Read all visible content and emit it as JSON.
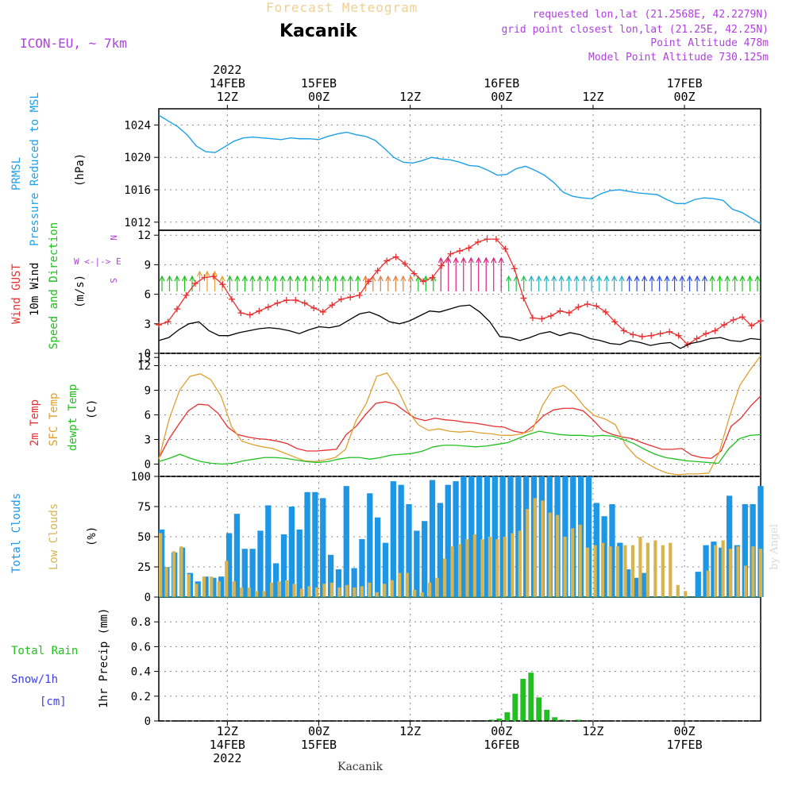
{
  "header": {
    "forecast_title": "Forecast Meteogram",
    "station": "Kacanik",
    "model": "ICON-EU, ~ 7km",
    "meta_lines": [
      "requested lon,lat (21.2568E, 42.2279N)",
      "grid point closest lon,lat (21.25E, 42.25N)",
      "Point Altitude 478m",
      "Model Point Altitude 730.125m"
    ],
    "credit": "by Angel",
    "footer_name": "Kacanik"
  },
  "time_axis": {
    "top_labels": [
      {
        "h": 12,
        "lines": [
          "2022",
          "14FEB",
          "12Z"
        ]
      },
      {
        "h": 24,
        "lines": [
          "15FEB",
          "00Z"
        ]
      },
      {
        "h": 36,
        "lines": [
          "12Z"
        ]
      },
      {
        "h": 48,
        "lines": [
          "16FEB",
          "00Z"
        ]
      },
      {
        "h": 60,
        "lines": [
          "12Z"
        ]
      },
      {
        "h": 72,
        "lines": [
          "17FEB",
          "00Z"
        ]
      }
    ],
    "bottom_labels": [
      {
        "h": 12,
        "lines": [
          "12Z",
          "14FEB",
          "2022"
        ]
      },
      {
        "h": 24,
        "lines": [
          "00Z",
          "15FEB"
        ]
      },
      {
        "h": 36,
        "lines": [
          "12Z"
        ]
      },
      {
        "h": 48,
        "lines": [
          "00Z",
          "16FEB"
        ]
      },
      {
        "h": 60,
        "lines": [
          "12Z"
        ]
      },
      {
        "h": 72,
        "lines": [
          "00Z",
          "17FEB"
        ]
      }
    ]
  },
  "colors": {
    "pressure": "#1ea0e6",
    "gust": "#e83030",
    "wind": "#000000",
    "temp2m": "#e83030",
    "sfc": "#e0a030",
    "dewpt": "#20c020",
    "total_clouds": "#1e96e6",
    "low_clouds": "#d8b450",
    "rain": "#20c020",
    "snow": "#4040e0",
    "arrow": "#20c020",
    "purple": "#b040e0"
  },
  "chart_data": [
    {
      "type": "line",
      "title": "PRMSL Pressure Reduced to MSL",
      "ylabel": "(hPa)",
      "side_labels": [
        "PRMSL",
        "Pressure Reduced to MSL"
      ],
      "ylim": [
        1011,
        1026
      ],
      "yticks": [
        1012,
        1016,
        1020,
        1024
      ],
      "series": [
        {
          "name": "pressure",
          "values": [
            1025.2,
            1024.5,
            1023.8,
            1022.8,
            1021.4,
            1020.7,
            1020.6,
            1021.3,
            1022.0,
            1022.4,
            1022.5,
            1022.4,
            1022.3,
            1022.2,
            1022.4,
            1022.3,
            1022.3,
            1022.2,
            1022.6,
            1022.9,
            1023.1,
            1022.8,
            1022.6,
            1022.1,
            1021.1,
            1020.0,
            1019.4,
            1019.3,
            1019.6,
            1020.0,
            1019.8,
            1019.7,
            1019.4,
            1019.0,
            1018.9,
            1018.4,
            1017.8,
            1017.9,
            1018.6,
            1018.9,
            1018.4,
            1017.8,
            1016.9,
            1015.7,
            1015.2,
            1015.0,
            1014.9,
            1015.5,
            1015.9,
            1016.0,
            1015.8,
            1015.6,
            1015.5,
            1015.4,
            1014.8,
            1014.3,
            1014.3,
            1014.8,
            1015.0,
            1014.9,
            1014.7,
            1013.6,
            1013.2,
            1012.5,
            1011.8
          ]
        }
      ]
    },
    {
      "type": "line",
      "title": "Wind GUST, 10m Wind Speed and Direction",
      "ylabel": "(m/s)",
      "side_labels": [
        "Wind GUST",
        "10m Wind",
        "Speed and Direction"
      ],
      "compass": [
        "N",
        "W <-|-> E",
        "S"
      ],
      "ylim": [
        0,
        12.5
      ],
      "yticks": [
        0,
        3,
        6,
        9,
        12
      ],
      "series": [
        {
          "name": "gust",
          "values": [
            2.9,
            3.2,
            4.5,
            5.9,
            7.1,
            7.7,
            7.8,
            7.0,
            5.5,
            4.1,
            3.9,
            4.3,
            4.7,
            5.1,
            5.4,
            5.4,
            5.1,
            4.6,
            4.2,
            4.9,
            5.5,
            5.7,
            5.9,
            7.3,
            8.4,
            9.4,
            9.8,
            9.1,
            8.1,
            7.3,
            7.7,
            8.9,
            10.1,
            10.4,
            10.7,
            11.3,
            11.6,
            11.6,
            10.6,
            8.6,
            5.6,
            3.6,
            3.5,
            3.8,
            4.3,
            4.1,
            4.7,
            5.0,
            4.8,
            4.2,
            3.2,
            2.3,
            1.9,
            1.7,
            1.8,
            2.0,
            2.2,
            1.8,
            0.9,
            1.5,
            2.0,
            2.3,
            2.9,
            3.4,
            3.7,
            2.8,
            3.3
          ]
        },
        {
          "name": "wind",
          "values": [
            1.3,
            1.6,
            2.4,
            3.0,
            3.2,
            2.3,
            1.8,
            1.8,
            2.1,
            2.3,
            2.5,
            2.6,
            2.5,
            2.3,
            2.0,
            2.4,
            2.7,
            2.6,
            2.8,
            3.4,
            4.0,
            4.2,
            3.8,
            3.2,
            3.0,
            3.3,
            3.8,
            4.3,
            4.2,
            4.5,
            4.8,
            4.9,
            4.2,
            3.2,
            1.7,
            1.6,
            1.3,
            1.6,
            2.0,
            2.2,
            1.8,
            2.1,
            1.9,
            1.5,
            1.3,
            1.0,
            0.9,
            1.3,
            1.1,
            0.8,
            1.0,
            1.1,
            0.5,
            1.0,
            1.2,
            1.5,
            1.6,
            1.3,
            1.2,
            1.5,
            1.4
          ]
        }
      ],
      "direction_arrows": "from south (pointing N) throughout"
    },
    {
      "type": "line",
      "title": "2m Temp, SFC Temp, dewpt Temp",
      "ylabel": "(C)",
      "side_labels": [
        "2m Temp",
        "SFC Temp",
        "dewpt Temp"
      ],
      "ylim": [
        -1.5,
        13.5
      ],
      "yticks": [
        0,
        3,
        6,
        9,
        12
      ],
      "y_top_tick": 13,
      "series": [
        {
          "name": "temp2m",
          "values": [
            0.7,
            3.0,
            4.8,
            6.5,
            7.3,
            7.2,
            6.2,
            4.5,
            3.6,
            3.3,
            3.1,
            3.0,
            2.8,
            2.5,
            1.9,
            1.6,
            1.6,
            1.7,
            1.8,
            3.6,
            4.6,
            6.1,
            7.4,
            7.6,
            7.3,
            6.4,
            5.6,
            5.3,
            5.6,
            5.4,
            5.3,
            5.1,
            5.0,
            4.8,
            4.6,
            4.5,
            4.0,
            3.8,
            4.7,
            5.9,
            6.6,
            6.8,
            6.8,
            6.5,
            5.4,
            4.1,
            3.6,
            3.3,
            3.1,
            2.6,
            2.2,
            1.8,
            1.8,
            1.9,
            1.1,
            0.8,
            0.7,
            1.6,
            4.6,
            5.6,
            7.1,
            8.3
          ]
        },
        {
          "name": "sfc",
          "values": [
            0.6,
            5.5,
            9.0,
            10.7,
            11.0,
            10.3,
            8.3,
            4.6,
            2.8,
            2.4,
            2.1,
            1.9,
            1.4,
            0.9,
            0.4,
            0.3,
            0.5,
            0.8,
            1.8,
            5.3,
            7.4,
            10.7,
            11.1,
            9.2,
            6.5,
            4.8,
            4.1,
            4.3,
            4.0,
            3.9,
            4.0,
            3.8,
            3.7,
            3.5,
            3.5,
            3.7,
            4.1,
            7.2,
            9.2,
            9.6,
            8.6,
            7.0,
            5.9,
            5.5,
            4.8,
            2.3,
            0.9,
            0.1,
            -0.6,
            -1.1,
            -1.3,
            -1.2,
            -1.2,
            -1.1,
            1.4,
            5.8,
            9.6,
            11.5,
            13.2
          ]
        },
        {
          "name": "dewpt",
          "values": [
            0.3,
            0.7,
            1.2,
            0.7,
            0.3,
            0.1,
            0.0,
            0.1,
            0.4,
            0.6,
            0.8,
            0.8,
            0.7,
            0.5,
            0.3,
            0.2,
            0.3,
            0.6,
            0.8,
            0.8,
            0.6,
            0.8,
            1.1,
            1.2,
            1.3,
            1.6,
            2.1,
            2.3,
            2.3,
            2.2,
            2.1,
            2.2,
            2.4,
            2.6,
            3.1,
            3.6,
            4.0,
            3.8,
            3.6,
            3.5,
            3.5,
            3.4,
            3.5,
            3.4,
            3.0,
            2.5,
            1.8,
            1.2,
            0.8,
            0.6,
            0.4,
            0.3,
            0.2,
            0.1,
            1.9,
            3.1,
            3.5,
            3.6
          ]
        }
      ]
    },
    {
      "type": "bar",
      "title": "Total Clouds, Low Clouds",
      "ylabel": "(%)",
      "side_labels": [
        "Total Clouds",
        "Low Clouds"
      ],
      "ylim": [
        0,
        100
      ],
      "yticks": [
        0,
        25,
        50,
        75,
        100
      ],
      "series": [
        {
          "name": "total",
          "values": [
            56,
            25,
            37,
            41,
            20,
            13,
            17,
            16,
            17,
            53,
            69,
            40,
            40,
            55,
            76,
            28,
            52,
            75,
            56,
            87,
            87,
            82,
            35,
            23,
            92,
            24,
            48,
            86,
            66,
            45,
            96,
            93,
            77,
            55,
            63,
            97,
            78,
            93,
            96,
            100,
            100,
            100,
            100,
            100,
            100,
            100,
            100,
            100,
            100,
            100,
            100,
            100,
            100,
            100,
            100,
            100,
            78,
            67,
            77,
            45,
            23,
            16,
            20,
            0,
            0,
            0,
            0,
            0,
            0,
            21,
            43,
            46,
            41,
            84,
            43,
            77,
            77,
            92
          ]
        },
        {
          "name": "low",
          "values": [
            53,
            25,
            38,
            42,
            19,
            11,
            17,
            17,
            13,
            30,
            13,
            8,
            8,
            5,
            5,
            12,
            13,
            14,
            11,
            7,
            9,
            8,
            11,
            12,
            8,
            10,
            8,
            9,
            12,
            4,
            11,
            14,
            20,
            20,
            6,
            4,
            12,
            16,
            32,
            42,
            44,
            48,
            52,
            48,
            50,
            48,
            50,
            53,
            55,
            73,
            82,
            80,
            70,
            68,
            50,
            57,
            60,
            41,
            43,
            45,
            42,
            42,
            43,
            43,
            50,
            45,
            47,
            43,
            45,
            10,
            5,
            0,
            0,
            22,
            43,
            47,
            40,
            42,
            26,
            42,
            40
          ]
        }
      ]
    },
    {
      "type": "bar",
      "title": "1hr Precip (mm)",
      "ylabel": "1hr Precip (mm)",
      "side_labels": [
        "Total  Rain",
        "Snow/1h",
        "[cm]"
      ],
      "ylim": [
        0,
        1.0
      ],
      "yticks": [
        0,
        0.2,
        0.4,
        0.6,
        0.8
      ],
      "series": [
        {
          "name": "rain",
          "values": [
            0,
            0,
            0,
            0,
            0,
            0,
            0,
            0,
            0,
            0,
            0,
            0,
            0,
            0,
            0,
            0,
            0,
            0,
            0,
            0,
            0,
            0,
            0,
            0,
            0,
            0,
            0,
            0,
            0,
            0,
            0,
            0,
            0,
            0,
            0,
            0,
            0,
            0,
            0,
            0,
            0,
            0,
            0.01,
            0.02,
            0.07,
            0.22,
            0.34,
            0.39,
            0.19,
            0.09,
            0.03,
            0.01,
            0,
            0.01,
            0,
            0,
            0,
            0,
            0,
            0,
            0,
            0,
            0,
            0,
            0,
            0,
            0,
            0,
            0,
            0,
            0,
            0,
            0,
            0,
            0,
            0,
            0
          ]
        },
        {
          "name": "snow",
          "values": []
        }
      ]
    }
  ]
}
